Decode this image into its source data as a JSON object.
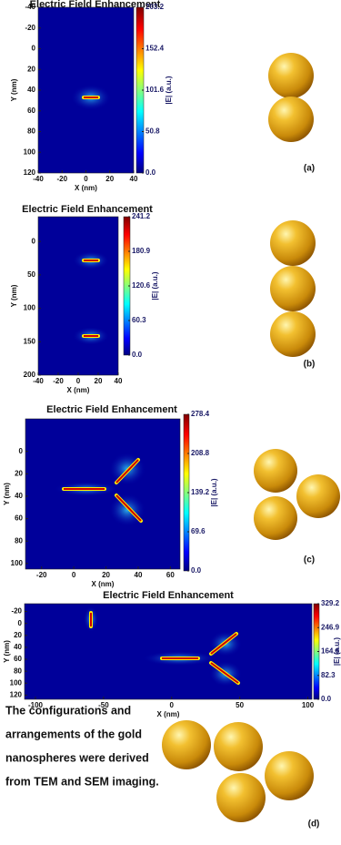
{
  "chart_data": [
    {
      "type": "heatmap",
      "title": "Electric Field Enhancement",
      "xlabel": "X (nm)",
      "ylabel": "Y (nm)",
      "xlim": [
        -40,
        40
      ],
      "ylim": [
        -40,
        120
      ],
      "xticks": [
        -40,
        -20,
        0,
        20,
        40
      ],
      "yticks": [
        -40,
        -20,
        0,
        20,
        40,
        60,
        80,
        100,
        120
      ],
      "colorbar_label": "|E| (a.u.)",
      "clim": [
        0,
        203.2
      ],
      "cticks": [
        {
          "value": 0,
          "label": "0.0"
        },
        50.8,
        101.6,
        152.4,
        203.2
      ],
      "panel_label": "(a)"
    },
    {
      "type": "heatmap",
      "title": "Electric Field Enhancement",
      "xlabel": "X (nm)",
      "ylabel": "Y (nm)",
      "xlim": [
        -40,
        40
      ],
      "ylim": [
        -37,
        200
      ],
      "xticks": [
        -40,
        -20,
        0,
        20,
        40
      ],
      "yticks": [
        0,
        50,
        100,
        150,
        200
      ],
      "colorbar_label": "|E| (a.u.)",
      "clim": [
        0,
        241.2
      ],
      "cticks": [
        {
          "value": 0,
          "label": "0.0"
        },
        60.3,
        120.6,
        180.9,
        241.2
      ],
      "panel_label": "(b)"
    },
    {
      "type": "heatmap",
      "title": "Electric Field Enhancement",
      "xlabel": "X (nm)",
      "ylabel": "Y (nm)",
      "xlim": [
        -30,
        66
      ],
      "ylim": [
        -29,
        105
      ],
      "xticks": [
        -20,
        0,
        20,
        40,
        60
      ],
      "yticks": [
        0,
        20,
        40,
        60,
        80,
        100
      ],
      "colorbar_label": "|E| (a.u.)",
      "clim": [
        0,
        278.4
      ],
      "cticks": [
        {
          "value": 0,
          "label": "0.0"
        },
        69.6,
        139.2,
        208.8,
        278.4
      ],
      "panel_label": "(c)"
    },
    {
      "type": "heatmap",
      "title": "Electric Field Enhancement",
      "xlabel": "X (nm)",
      "ylabel": "Y (nm)",
      "xlim": [
        -108,
        103
      ],
      "ylim": [
        -33,
        127
      ],
      "xticks": [
        -100,
        -50,
        0,
        50,
        100
      ],
      "yticks": [
        -20,
        0,
        20,
        40,
        60,
        80,
        100,
        120
      ],
      "colorbar_label": "|E| (a.u.)",
      "clim": [
        0,
        329.2
      ],
      "cticks": [
        {
          "value": 0,
          "label": "0.0"
        },
        82.3,
        164.6,
        246.9,
        329.2
      ],
      "panel_label": "(d)"
    }
  ],
  "caption": [
    "The configurations and",
    "arrangements of the gold",
    "nanospheres were derived",
    "from TEM and SEM imaging."
  ]
}
